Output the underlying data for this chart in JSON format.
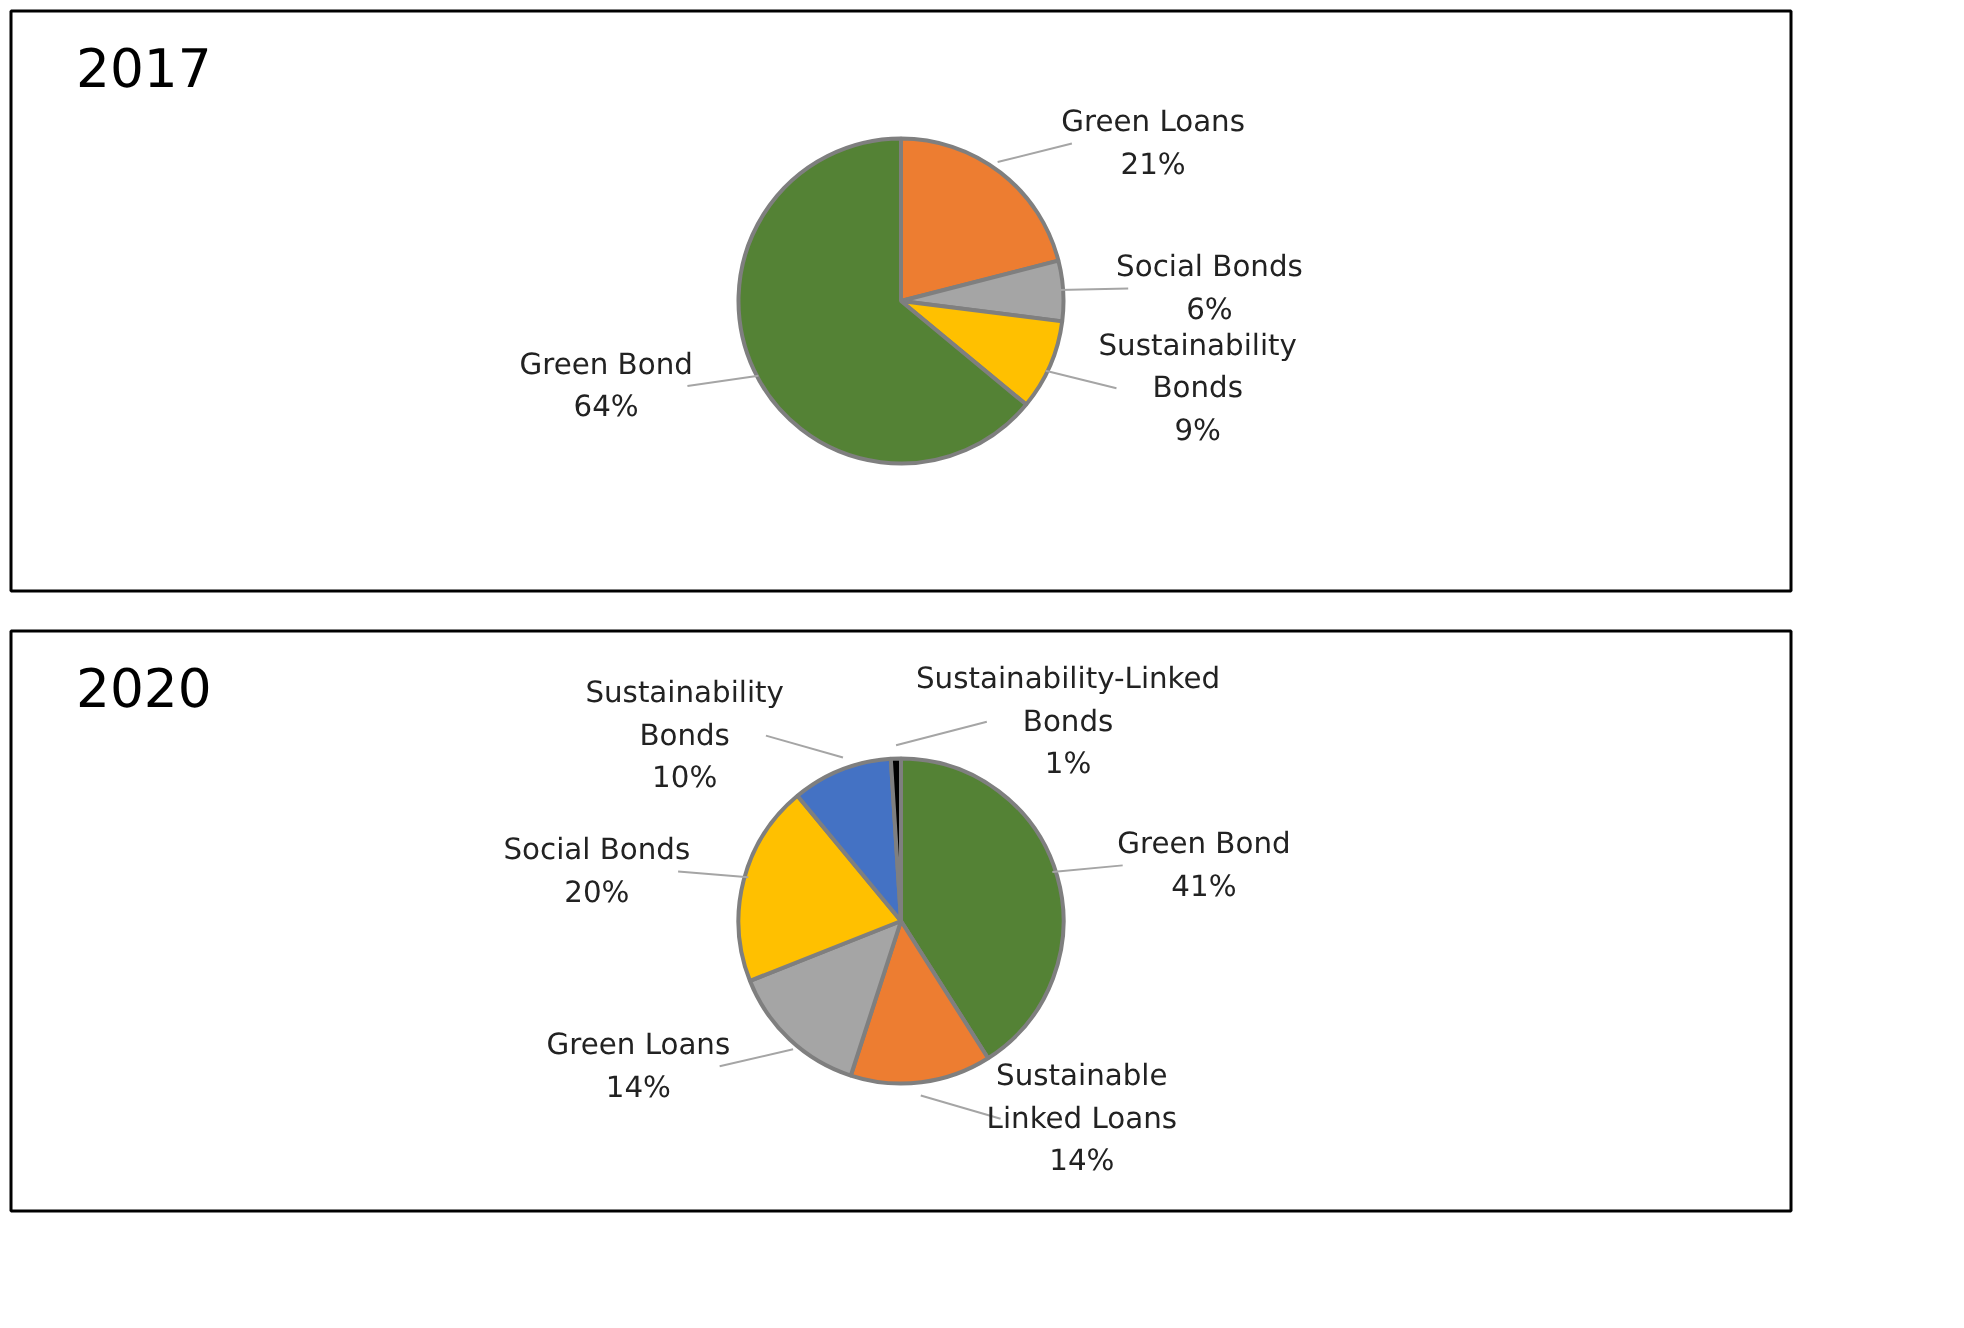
{
  "chart_data": [
    {
      "type": "pie",
      "title": "2017",
      "categories": [
        "Green Loans",
        "Social Bonds",
        "Sustainability Bonds",
        "Green Bond"
      ],
      "values": [
        21,
        6,
        9,
        64
      ],
      "value_labels": [
        "21%",
        "6%",
        "9%",
        "64%"
      ],
      "colors": [
        "#ed7d31",
        "#a5a5a5",
        "#ffc000",
        "#548235"
      ],
      "legend": false
    },
    {
      "type": "pie",
      "title": "2020",
      "categories": [
        "Green Bond",
        "Sustainable Linked Loans",
        "Green Loans",
        "Social Bonds",
        "Sustainability Bonds",
        "Sustainability-Linked Bonds"
      ],
      "values": [
        41,
        14,
        14,
        20,
        10,
        1
      ],
      "value_labels": [
        "41%",
        "14%",
        "14%",
        "20%",
        "10%",
        "1%"
      ],
      "colors": [
        "#548235",
        "#ed7d31",
        "#a5a5a5",
        "#ffc000",
        "#4472c4",
        "#000000"
      ],
      "legend": false
    }
  ]
}
